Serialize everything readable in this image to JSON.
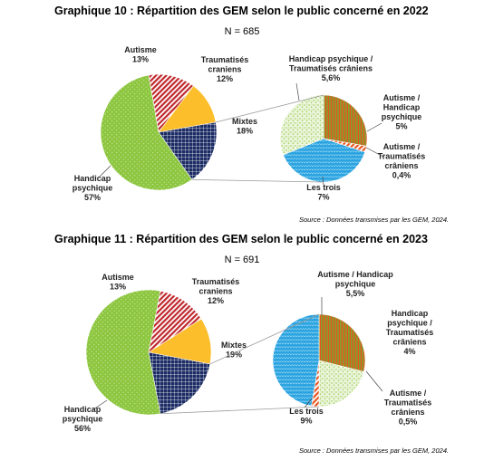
{
  "chart_data": [
    {
      "type": "pie",
      "title": "Graphique 10 : Répartition des GEM selon le public concerné en 2022",
      "subtitle": "N = 685",
      "source": "Source : Données transmises par les GEM, 2024.",
      "main_pie": {
        "slices": [
          {
            "name": "Autisme",
            "label_lines": [
              "Autisme",
              "13%"
            ],
            "value": 13,
            "color": "#c0282d",
            "pattern": "diag-stripes"
          },
          {
            "name": "Traumatisés craniens",
            "label_lines": [
              "Traumatisés",
              "craniens",
              "12%"
            ],
            "value": 12,
            "color": "#fdbe2c",
            "pattern": "solid"
          },
          {
            "name": "Mixtes",
            "label_lines": [
              "Mixtes",
              "18%"
            ],
            "value": 18,
            "color": "#1b2b64",
            "pattern": "grid"
          },
          {
            "name": "Handicap psychique",
            "label_lines": [
              "Handicap",
              "psychique",
              "57%"
            ],
            "value": 57,
            "color": "#8dc63f",
            "pattern": "dots"
          }
        ]
      },
      "detail_pie": {
        "of": "Mixtes",
        "slices": [
          {
            "name": "Autisme / Handicap psychique",
            "label_lines": [
              "Autisme /",
              "Handicap",
              "psychique",
              "5%"
            ],
            "value": 5,
            "color": "#8a9b2e",
            "pattern": "vert-stripes"
          },
          {
            "name": "Autisme / Traumatisés crâniens",
            "label_lines": [
              "Autisme /",
              "Traumatisés",
              "crâniens",
              "0,4%"
            ],
            "value": 0.4,
            "color": "#e8541e",
            "pattern": "diag-stripes"
          },
          {
            "name": "Les trois",
            "label_lines": [
              "Les trois",
              "7%"
            ],
            "value": 7,
            "color": "#29a3e0",
            "pattern": "scales"
          },
          {
            "name": "Handicap psychique / Traumatisés crâniens",
            "label_lines": [
              "Handicap psychique /",
              "Traumatisés crâniens",
              "5,6%"
            ],
            "value": 5.6,
            "color": "#a9d66e",
            "pattern": "speckle"
          }
        ]
      }
    },
    {
      "type": "pie",
      "title": "Graphique 11 : Répartition des GEM selon le public concerné en 2023",
      "subtitle": "N = 691",
      "source": "Source : Données transmises par les GEM, 2024.",
      "main_pie": {
        "slices": [
          {
            "name": "Autisme",
            "label_lines": [
              "Autisme",
              "13%"
            ],
            "value": 13,
            "color": "#c0282d",
            "pattern": "diag-stripes"
          },
          {
            "name": "Traumatisés craniens",
            "label_lines": [
              "Traumatisés",
              "craniens",
              "12%"
            ],
            "value": 12,
            "color": "#fdbe2c",
            "pattern": "solid"
          },
          {
            "name": "Mixtes",
            "label_lines": [
              "Mixtes",
              "19%"
            ],
            "value": 19,
            "color": "#1b2b64",
            "pattern": "grid"
          },
          {
            "name": "Handicap psychique",
            "label_lines": [
              "Handicap",
              "psychique",
              "56%"
            ],
            "value": 56,
            "color": "#8dc63f",
            "pattern": "dots"
          }
        ]
      },
      "detail_pie": {
        "of": "Mixtes",
        "slices": [
          {
            "name": "Autisme / Handicap psychique",
            "label_lines": [
              "Autisme / Handicap",
              "psychique",
              "5,5%"
            ],
            "value": 5.5,
            "color": "#8a9b2e",
            "pattern": "vert-stripes"
          },
          {
            "name": "Handicap psychique / Traumatisés crâniens",
            "label_lines": [
              "Handicap",
              "psychique /",
              "Traumatisés",
              "crâniens",
              "4%"
            ],
            "value": 4,
            "color": "#a9d66e",
            "pattern": "speckle"
          },
          {
            "name": "Autisme / Traumatisés crâniens",
            "label_lines": [
              "Autisme /",
              "Traumatisés",
              "crâniens",
              "0,5%"
            ],
            "value": 0.5,
            "color": "#e8541e",
            "pattern": "diag-stripes"
          },
          {
            "name": "Les trois",
            "label_lines": [
              "Les trois",
              "9%"
            ],
            "value": 9,
            "color": "#29a3e0",
            "pattern": "scales"
          }
        ]
      }
    }
  ]
}
